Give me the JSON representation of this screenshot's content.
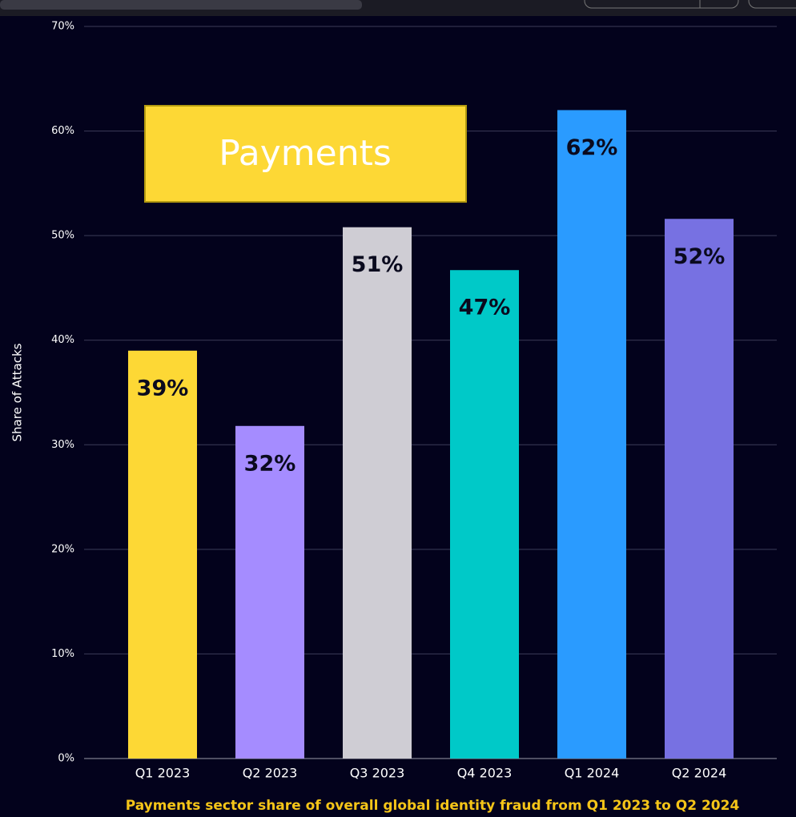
{
  "chart_data": {
    "type": "bar",
    "title": "Payments sector share of overall global identity fraud from Q1 2023 to Q2 2024",
    "ylabel": "Share of Attacks",
    "annotation": "Payments",
    "categories": [
      "Q1 2023",
      "Q2 2023",
      "Q3 2023",
      "Q4 2023",
      "Q1 2024",
      "Q2 2024"
    ],
    "values": [
      39,
      31.8,
      50.8,
      46.7,
      62,
      51.6
    ],
    "value_labels": [
      "39%",
      "32%",
      "51%",
      "47%",
      "62%",
      "52%"
    ],
    "colors": [
      "#fdd835",
      "#a58cff",
      "#cfcdd4",
      "#00c9c8",
      "#2a9bff",
      "#7771e2"
    ],
    "ylim": [
      0,
      70
    ],
    "yticks": [
      {
        "value": 0,
        "label": "0%"
      },
      {
        "value": 10,
        "label": "10%"
      },
      {
        "value": 20,
        "label": "20%"
      },
      {
        "value": 30,
        "label": "30%"
      },
      {
        "value": 40,
        "label": "40%"
      },
      {
        "value": 50,
        "label": "50%"
      },
      {
        "value": 60,
        "label": "60%"
      },
      {
        "value": 70,
        "label": "70%"
      }
    ],
    "grid": true
  }
}
